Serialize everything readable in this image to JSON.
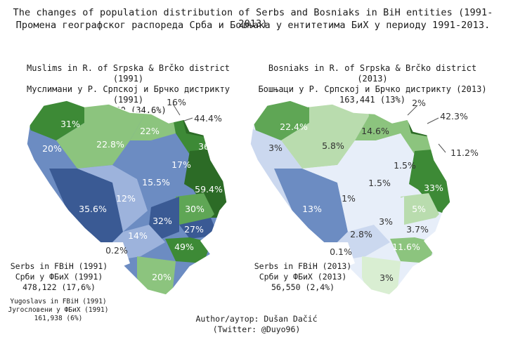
{
  "title": {
    "line1": "The changes of population distribution of Serbs and Bosniaks in BiH entities (1991-2013)",
    "line2": "Промена географског распореда Срба и Бошњака у ентитетима БиХ у периоду 1991-2013."
  },
  "left_map": {
    "caption_en": "Muslims in R. of Srpska & Brčko district (1991)",
    "caption_sr": "Муслимани у Р. Српској и Брчко дистрикту (1991)",
    "caption_total": "512,600 (34,6%)",
    "labels": {
      "nw": "31%",
      "north": "22%",
      "north_center": "22.8%",
      "posavina_small": "16%",
      "brcko": "44.4%",
      "bijeljina": "36%",
      "west": "20%",
      "doboj_south": "17%",
      "banja_luka_south": "15.5%",
      "podrinje": "59.4%",
      "center": "12%",
      "sw": "35.6%",
      "sarajevo": "30%",
      "srpsko_sarajevo": "32%",
      "rogatica": "27%",
      "herz_west": "14%",
      "foca": "49%",
      "herz_south": "0.2%",
      "trebinje": "20%"
    },
    "legend": {
      "serbs_en": "Serbs in FBiH (1991)",
      "serbs_sr": "Срби у ФБиХ (1991)",
      "serbs_total": "478,122 (17,6%)",
      "yugo_en": "Yugoslavs in FBiH (1991)",
      "yugo_sr": "Југословени у ФБиХ (1991)",
      "yugo_total": "161,938 (6%)"
    }
  },
  "right_map": {
    "caption_en": "Bosniaks in R. of Srpska & Brčko district (2013)",
    "caption_sr": "Бошњаци у Р. Српској и Брчко дистрикту (2013)",
    "caption_total": "163,441 (13%)",
    "labels": {
      "nw": "22.4%",
      "north": "14.6%",
      "posavina_small": "2%",
      "brcko": "42.3%",
      "bijeljina": "11.2%",
      "west": "3%",
      "north_center": "5.8%",
      "doboj_south": "1.5%",
      "center_east": "1.5%",
      "podrinje": "33%",
      "center": "1%",
      "sw": "13%",
      "sarajevo": "5%",
      "srpsko_sarajevo": "3%",
      "rogatica": "3.7%",
      "herz_west": "2.8%",
      "foca": "11.6%",
      "herz_south": "0.1%",
      "trebinje": "3%"
    },
    "legend": {
      "serbs_en": "Serbs in FBiH (2013)",
      "serbs_sr": "Срби у ФБиХ (2013)",
      "serbs_total": "56,550 (2,4%)"
    }
  },
  "author": {
    "line1": "Author/аутор: Dušan Dačić",
    "line2": "(Twitter: @Duyo96)"
  },
  "colors": {
    "green_darkest": "#2c6b26",
    "green_dark": "#3d8a36",
    "green_mid": "#5fa655",
    "green_light": "#8cc47e",
    "green_pale": "#b9dcae",
    "green_palest": "#d9eed2",
    "blue_dark": "#3a5a94",
    "blue_mid": "#6c8cc2",
    "blue_light": "#9db3dc",
    "blue_pale": "#cbd8ef",
    "blue_palest": "#e7eef9"
  }
}
